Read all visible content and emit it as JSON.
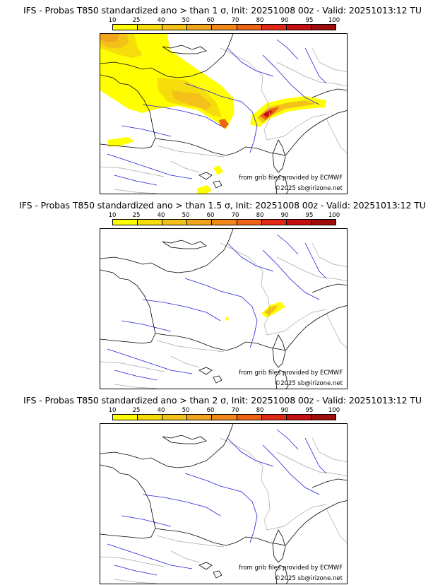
{
  "colorbar": {
    "ticks": [
      "10",
      "25",
      "40",
      "50",
      "60",
      "70",
      "80",
      "90",
      "95",
      "100"
    ],
    "colors": [
      "#ffff00",
      "#f7dc0c",
      "#f4c01a",
      "#f2a41e",
      "#f0881a",
      "#ec6414",
      "#e02814",
      "#c41010",
      "#a00c0c",
      "#7c0606"
    ]
  },
  "map_colors": {
    "coast": "#000000",
    "rivers": "#2020d8",
    "borders": "#a8a8a8"
  },
  "credit": {
    "provided": "from grib files provided by ECMWF",
    "copyright": "©2025 sb@irizone.net"
  },
  "panels": [
    {
      "title": "IFS - Probas T850  standardized ano > than 1 σ, Init: 20251008 00z - Valid: 20251013:12 TU"
    },
    {
      "title": "IFS - Probas T850  standardized ano > than 1.5 σ, Init: 20251008 00z - Valid: 20251013:12 TU"
    },
    {
      "title": "IFS - Probas T850  standardized ano > than 2 σ, Init: 20251008 00z - Valid: 20251013:12 TU"
    }
  ]
}
